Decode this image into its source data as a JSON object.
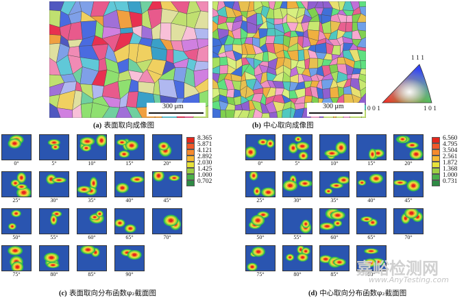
{
  "maps": {
    "a": {
      "scale_label": "300 μm",
      "caption_tag": "(a)",
      "caption_text": "表面取向成像图"
    },
    "b": {
      "scale_label": "300 μm",
      "caption_tag": "(b)",
      "caption_text": "中心取向成像图"
    }
  },
  "ipf_key": {
    "corner_top": "1 1 1",
    "corner_left": "0 0 1",
    "corner_right": "1 0 1"
  },
  "odf_c": {
    "caption_tag": "(c)",
    "caption_text": "表面取向分布函数φ₂截面图",
    "angles": [
      "0°",
      "5°",
      "10°",
      "15°",
      "20°",
      "25°",
      "30°",
      "35°",
      "40°",
      "45°",
      "50°",
      "55°",
      "60°",
      "65°",
      "70°",
      "75°",
      "80°",
      "85°",
      "90°"
    ],
    "legend_levels": [
      "8.365",
      "5.871",
      "4.121",
      "2.892",
      "2.030",
      "1.425",
      "1.000",
      "0.702"
    ]
  },
  "odf_d": {
    "caption_tag": "(d)",
    "caption_text": "中心取向分布函数φ₂截面图",
    "angles": [
      "0°",
      "5°",
      "10°",
      "15°",
      "20°",
      "25°",
      "30°",
      "35°",
      "40°",
      "45°",
      "50°",
      "55°",
      "60°",
      "65°",
      "70°",
      "75°",
      "80°",
      "85°",
      "90°"
    ],
    "legend_levels": [
      "6.560",
      "4.795",
      "3.504",
      "2.561",
      "1.872",
      "1.368",
      "1.000",
      "0.731"
    ]
  },
  "legend_colors": [
    "#e4271c",
    "#f0592a",
    "#f58a2e",
    "#f7b934",
    "#e7e23a",
    "#9fd044",
    "#4bb04a",
    "#2f8a45"
  ],
  "watermark": {
    "cn": "嘉峪检测网",
    "en": "www.AnyTesting.com"
  }
}
